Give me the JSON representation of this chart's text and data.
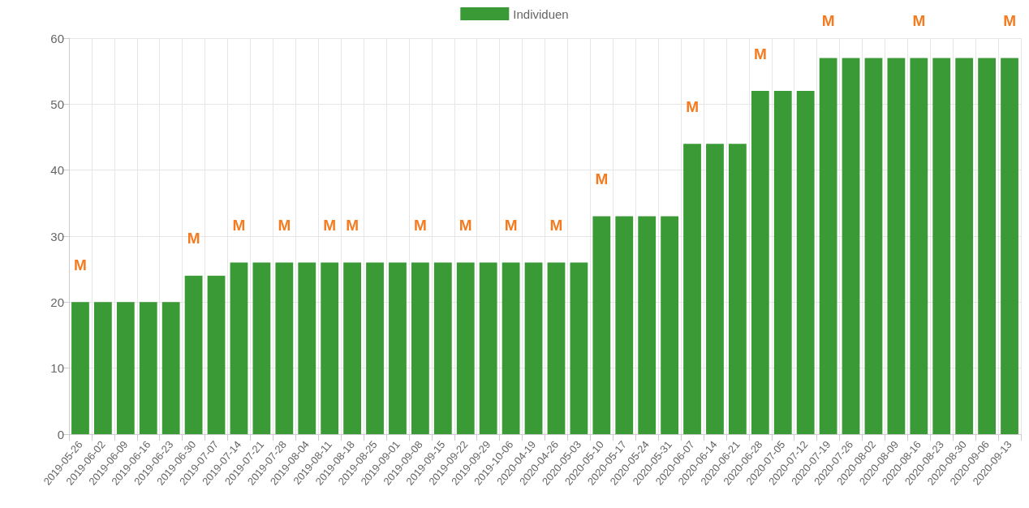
{
  "chart_data": {
    "type": "bar",
    "categories": [
      "2019-05-26",
      "2019-06-02",
      "2019-06-09",
      "2019-06-16",
      "2019-06-23",
      "2019-06-30",
      "2019-07-07",
      "2019-07-14",
      "2019-07-21",
      "2019-07-28",
      "2019-08-04",
      "2019-08-11",
      "2019-08-18",
      "2019-08-25",
      "2019-09-01",
      "2019-09-08",
      "2019-09-15",
      "2019-09-22",
      "2019-09-29",
      "2019-10-06",
      "2020-04-19",
      "2020-04-26",
      "2020-05-03",
      "2020-05-10",
      "2020-05-17",
      "2020-05-24",
      "2020-05-31",
      "2020-06-07",
      "2020-06-14",
      "2020-06-21",
      "2020-06-28",
      "2020-07-05",
      "2020-07-12",
      "2020-07-19",
      "2020-07-26",
      "2020-08-02",
      "2020-08-09",
      "2020-08-16",
      "2020-08-23",
      "2020-08-30",
      "2020-09-06",
      "2020-09-13"
    ],
    "series": [
      {
        "name": "Individuen",
        "color": "#3a9a35",
        "values": [
          20,
          20,
          20,
          20,
          20,
          24,
          24,
          26,
          26,
          26,
          26,
          26,
          26,
          26,
          26,
          26,
          26,
          26,
          26,
          26,
          26,
          26,
          26,
          33,
          33,
          33,
          33,
          44,
          44,
          44,
          52,
          52,
          52,
          57,
          57,
          57,
          57,
          57,
          57,
          57,
          57,
          57
        ]
      }
    ],
    "ylim": [
      0,
      60
    ],
    "yticks": [
      0,
      10,
      20,
      30,
      40,
      50,
      60
    ],
    "grid": true,
    "legend": "top",
    "annotations": [
      {
        "text": "M",
        "x": "2019-05-26",
        "y": 20
      },
      {
        "text": "M",
        "x": "2019-06-30",
        "y": 24
      },
      {
        "text": "M",
        "x": "2019-07-14",
        "y": 26
      },
      {
        "text": "M",
        "x": "2019-07-28",
        "y": 26
      },
      {
        "text": "M",
        "x": "2019-08-11",
        "y": 26
      },
      {
        "text": "M",
        "x": "2019-08-18",
        "y": 26
      },
      {
        "text": "M",
        "x": "2019-09-08",
        "y": 26
      },
      {
        "text": "M",
        "x": "2019-09-22",
        "y": 26
      },
      {
        "text": "M",
        "x": "2019-10-06",
        "y": 26
      },
      {
        "text": "M",
        "x": "2020-04-26",
        "y": 26
      },
      {
        "text": "M",
        "x": "2020-05-10",
        "y": 33
      },
      {
        "text": "M",
        "x": "2020-06-07",
        "y": 44
      },
      {
        "text": "M",
        "x": "2020-06-28",
        "y": 52
      },
      {
        "text": "M",
        "x": "2020-07-19",
        "y": 57
      },
      {
        "text": "M",
        "x": "2020-08-16",
        "y": 57
      },
      {
        "text": "M",
        "x": "2020-09-13",
        "y": 57
      }
    ]
  }
}
